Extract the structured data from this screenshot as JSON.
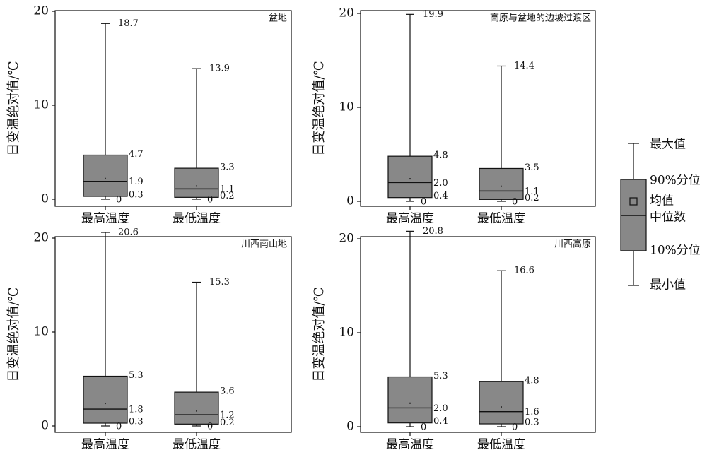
{
  "ylabel": "日变温绝对值/℃",
  "box_fill": "#888888",
  "line_color": "#111111",
  "chart_data": [
    {
      "type": "box",
      "title": "盆地",
      "ylim": [
        0,
        20
      ],
      "yticks": [
        0,
        10,
        20
      ],
      "categories": [
        "最高温度",
        "最低温度"
      ],
      "boxes": [
        {
          "min": 0,
          "p10": 0.3,
          "median": 1.9,
          "p90": 4.7,
          "max": 18.7,
          "mean": 2.2,
          "labels": {
            "max": "18.7",
            "p90": "4.7",
            "median": "1.9",
            "p10": "0.3",
            "min": "0"
          }
        },
        {
          "min": 0,
          "p10": 0.2,
          "median": 1.1,
          "p90": 3.3,
          "max": 13.9,
          "mean": 1.4,
          "labels": {
            "max": "13.9",
            "p90": "3.3",
            "median": "1.1",
            "p10": "0.2",
            "min": "0"
          }
        }
      ]
    },
    {
      "type": "box",
      "title": "高原与盆地的边坡过渡区",
      "ylim": [
        0,
        20
      ],
      "yticks": [
        0,
        10,
        20
      ],
      "categories": [
        "最高温度",
        "最低温度"
      ],
      "boxes": [
        {
          "min": 0,
          "p10": 0.4,
          "median": 2.0,
          "p90": 4.8,
          "max": 19.9,
          "mean": 2.4,
          "labels": {
            "max": "19.9",
            "p90": "4.8",
            "median": "2.0",
            "p10": "0.4",
            "min": "0"
          }
        },
        {
          "min": 0,
          "p10": 0.2,
          "median": 1.1,
          "p90": 3.5,
          "max": 14.4,
          "mean": 1.6,
          "labels": {
            "max": "14.4",
            "p90": "3.5",
            "median": "1.1",
            "p10": "0.2",
            "min": "0"
          }
        }
      ]
    },
    {
      "type": "box",
      "title": "川西南山地",
      "ylim": [
        0,
        20
      ],
      "yticks": [
        0,
        10,
        20
      ],
      "categories": [
        "最高温度",
        "最低温度"
      ],
      "boxes": [
        {
          "min": 0,
          "p10": 0.3,
          "median": 1.8,
          "p90": 5.3,
          "max": 20.6,
          "mean": 2.4,
          "labels": {
            "max": "20.6",
            "p90": "5.3",
            "median": "1.8",
            "p10": "0.3",
            "min": "0"
          }
        },
        {
          "min": 0,
          "p10": 0.2,
          "median": 1.2,
          "p90": 3.6,
          "max": 15.3,
          "mean": 1.6,
          "labels": {
            "max": "15.3",
            "p90": "3.6",
            "median": "1.2",
            "p10": "0.2",
            "min": "0"
          }
        }
      ]
    },
    {
      "type": "box",
      "title": "川西高原",
      "ylim": [
        0,
        20
      ],
      "yticks": [
        0,
        10,
        20
      ],
      "categories": [
        "最高温度",
        "最低温度"
      ],
      "boxes": [
        {
          "min": 0,
          "p10": 0.4,
          "median": 2.0,
          "p90": 5.3,
          "max": 20.8,
          "mean": 2.5,
          "labels": {
            "max": "20.8",
            "p90": "5.3",
            "median": "2.0",
            "p10": "0.4",
            "min": "0"
          }
        },
        {
          "min": 0,
          "p10": 0.3,
          "median": 1.6,
          "p90": 4.8,
          "max": 16.6,
          "mean": 2.1,
          "labels": {
            "max": "16.6",
            "p90": "4.8",
            "median": "1.6",
            "p10": "0.3",
            "min": "0"
          }
        }
      ]
    }
  ],
  "legend": {
    "max": "最大值",
    "p90": "90%分位",
    "mean": "均值",
    "median": "中位数",
    "p10": "10%分位",
    "min": "最小值"
  }
}
